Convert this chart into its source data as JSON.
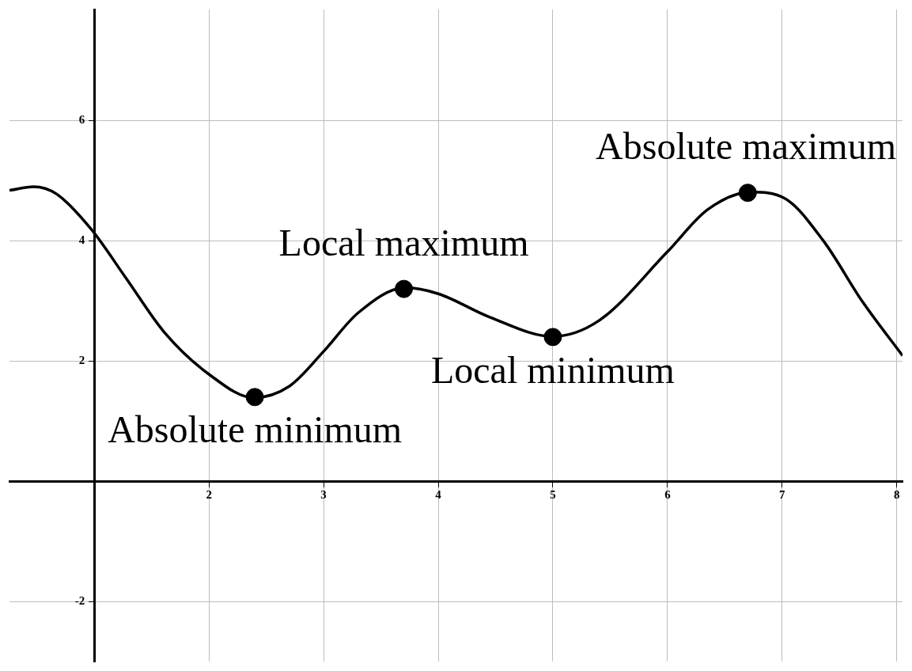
{
  "chart_data": {
    "type": "line",
    "xlim": [
      0.26,
      8.05
    ],
    "ylim": [
      -3,
      7.85
    ],
    "xticks": [
      {
        "value": 1,
        "label": null
      },
      2,
      3,
      4,
      5,
      6,
      7,
      8
    ],
    "yticks": [
      -2,
      {
        "value": 0,
        "label": null
      },
      2,
      4,
      6
    ],
    "grid": true,
    "series": [
      {
        "type": "line",
        "color": "#000000",
        "marker": "none",
        "x": [
          0.26,
          0.47,
          0.67,
          0.97,
          1.28,
          1.61,
          2,
          2.39,
          2.7,
          3,
          3.3,
          3.71,
          4,
          4.45,
          5,
          5.4,
          6,
          6.35,
          6.73,
          7.02,
          7.36,
          7.7,
          8.05
        ],
        "values": [
          4.84,
          4.9,
          4.78,
          4.2,
          3.37,
          2.48,
          1.78,
          1.39,
          1.58,
          2.16,
          2.8,
          3.22,
          3.12,
          2.73,
          2.41,
          2.67,
          3.82,
          4.52,
          4.81,
          4.71,
          4,
          2.99,
          2.09
        ]
      },
      {
        "type": "scatter",
        "color": "#000000",
        "marker": "circle",
        "x": [
          2.4,
          3.7,
          5,
          6.7
        ],
        "values": [
          1.4,
          3.2,
          2.4,
          4.8
        ]
      }
    ],
    "annotations": [
      {
        "text": "Absolute maximum",
        "x": 6.7,
        "y": 4.8
      },
      {
        "text": "Local maximum",
        "x": 3.7,
        "y": 3.2
      },
      {
        "text": "Local minimum",
        "x": 5,
        "y": 2.4
      },
      {
        "text": "Absolute minimum",
        "x": 2.4,
        "y": 1.4
      }
    ]
  }
}
